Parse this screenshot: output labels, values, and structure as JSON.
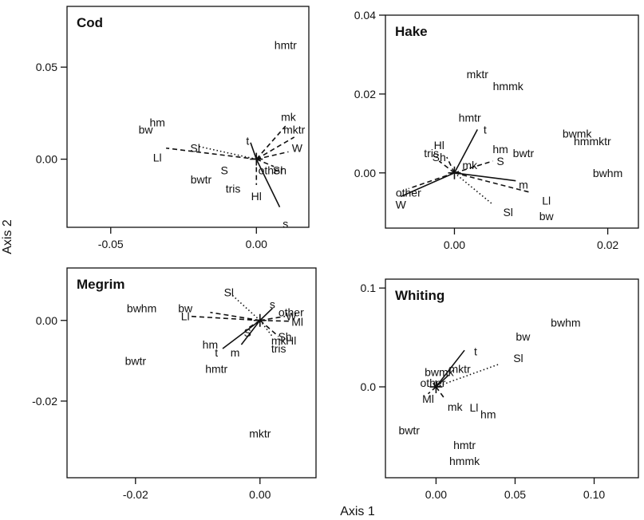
{
  "axis_labels": {
    "x": "Axis 1",
    "y": "Axis 2"
  },
  "chart_data": [
    {
      "type": "scatter",
      "title": "Cod",
      "xlim": [
        -0.065,
        0.018
      ],
      "ylim": [
        -0.037,
        0.083
      ],
      "xticks": [
        {
          "v": -0.05,
          "label": "-0.05"
        },
        {
          "v": 0.0,
          "label": "0.00"
        }
      ],
      "yticks": [
        {
          "v": 0.05,
          "label": "0.05"
        },
        {
          "v": 0.0,
          "label": "0.00"
        }
      ],
      "points": [
        {
          "label": "hmtr",
          "x": 0.01,
          "y": 0.062
        },
        {
          "label": "hm",
          "x": -0.034,
          "y": 0.02
        },
        {
          "label": "bw",
          "x": -0.038,
          "y": 0.016
        },
        {
          "label": "mk",
          "x": 0.011,
          "y": 0.023
        },
        {
          "label": "mktr",
          "x": 0.013,
          "y": 0.016
        },
        {
          "label": "Sl",
          "x": -0.021,
          "y": 0.006
        },
        {
          "label": "Ll",
          "x": -0.034,
          "y": 0.001
        },
        {
          "label": "W",
          "x": 0.014,
          "y": 0.006
        },
        {
          "label": "t",
          "x": -0.003,
          "y": 0.01
        },
        {
          "label": "S",
          "x": -0.011,
          "y": -0.006
        },
        {
          "label": "bwtr",
          "x": -0.019,
          "y": -0.011
        },
        {
          "label": "other",
          "x": 0.005,
          "y": -0.006
        },
        {
          "label": "Sh",
          "x": 0.008,
          "y": -0.006
        },
        {
          "label": "tris",
          "x": -0.008,
          "y": -0.016
        },
        {
          "label": "Hl",
          "x": 0.0,
          "y": -0.02
        },
        {
          "label": "s",
          "x": 0.01,
          "y": -0.035
        }
      ],
      "vectors": [
        {
          "to": "t",
          "style": "solid",
          "x": -0.002,
          "y": 0.009
        },
        {
          "to": "s",
          "style": "solid",
          "x": 0.008,
          "y": -0.026
        },
        {
          "to": "Ll",
          "style": "dashed",
          "x": -0.031,
          "y": 0.006
        },
        {
          "to": "Sl",
          "style": "dotted",
          "x": -0.02,
          "y": 0.007
        },
        {
          "to": "mk",
          "style": "dashed",
          "x": 0.01,
          "y": 0.018
        },
        {
          "to": "mktr",
          "style": "dashed",
          "x": 0.013,
          "y": 0.012
        },
        {
          "to": "W",
          "style": "dashed",
          "x": 0.011,
          "y": 0.004
        },
        {
          "to": "Hl",
          "style": "dashed",
          "x": 0.0,
          "y": -0.014
        },
        {
          "to": "other",
          "style": "dashed",
          "x": 0.006,
          "y": -0.004
        }
      ]
    },
    {
      "type": "scatter",
      "title": "Hake",
      "xlim": [
        -0.009,
        0.024
      ],
      "ylim": [
        -0.014,
        0.04
      ],
      "xticks": [
        {
          "v": 0.0,
          "label": "0.00"
        },
        {
          "v": 0.02,
          "label": "0.02"
        }
      ],
      "yticks": [
        {
          "v": 0.04,
          "label": "0.04"
        },
        {
          "v": 0.02,
          "label": "0.02"
        },
        {
          "v": 0.0,
          "label": "0.00"
        }
      ],
      "points": [
        {
          "label": "mktr",
          "x": 0.003,
          "y": 0.025
        },
        {
          "label": "hmmk",
          "x": 0.007,
          "y": 0.022
        },
        {
          "label": "hmtr",
          "x": 0.002,
          "y": 0.014
        },
        {
          "label": "t",
          "x": 0.004,
          "y": 0.011
        },
        {
          "label": "bwmk",
          "x": 0.016,
          "y": 0.01
        },
        {
          "label": "hmmktr",
          "x": 0.018,
          "y": 0.008
        },
        {
          "label": "Hl",
          "x": -0.002,
          "y": 0.007
        },
        {
          "label": "hm",
          "x": 0.006,
          "y": 0.006
        },
        {
          "label": "bwtr",
          "x": 0.009,
          "y": 0.005
        },
        {
          "label": "tris",
          "x": -0.003,
          "y": 0.005
        },
        {
          "label": "Sh",
          "x": -0.002,
          "y": 0.004
        },
        {
          "label": "S",
          "x": 0.006,
          "y": 0.003
        },
        {
          "label": "mk",
          "x": 0.002,
          "y": 0.002
        },
        {
          "label": "bwhm",
          "x": 0.02,
          "y": 0.0
        },
        {
          "label": "m",
          "x": 0.009,
          "y": -0.003
        },
        {
          "label": "other",
          "x": -0.006,
          "y": -0.005
        },
        {
          "label": "W",
          "x": -0.007,
          "y": -0.008
        },
        {
          "label": "Ll",
          "x": 0.012,
          "y": -0.007
        },
        {
          "label": "Sl",
          "x": 0.007,
          "y": -0.01
        },
        {
          "label": "bw",
          "x": 0.012,
          "y": -0.011
        }
      ],
      "vectors": [
        {
          "to": "hmtr",
          "style": "solid",
          "x": 0.003,
          "y": 0.011
        },
        {
          "to": "m",
          "style": "solid",
          "x": 0.008,
          "y": -0.002
        },
        {
          "to": "S",
          "style": "dashed",
          "x": 0.005,
          "y": 0.003
        },
        {
          "to": "Ll",
          "style": "dashed",
          "x": 0.01,
          "y": -0.005
        },
        {
          "to": "Sl",
          "style": "dotted",
          "x": 0.005,
          "y": -0.008
        },
        {
          "to": "W",
          "style": "solid",
          "x": -0.007,
          "y": -0.006
        },
        {
          "to": "other",
          "style": "dashed",
          "x": -0.006,
          "y": -0.004
        },
        {
          "to": "Sh",
          "style": "dashed",
          "x": -0.002,
          "y": 0.003
        },
        {
          "to": "Hl",
          "style": "dashed",
          "x": -0.001,
          "y": 0.004
        }
      ]
    },
    {
      "type": "scatter",
      "title": "Megrim",
      "xlim": [
        -0.031,
        0.009
      ],
      "ylim": [
        -0.039,
        0.013
      ],
      "xticks": [
        {
          "v": -0.02,
          "label": "-0.02"
        },
        {
          "v": 0.0,
          "label": "0.00"
        }
      ],
      "yticks": [
        {
          "v": 0.0,
          "label": "0.00"
        },
        {
          "v": -0.02,
          "label": "-0.02"
        }
      ],
      "points": [
        {
          "label": "Sl",
          "x": -0.005,
          "y": 0.007
        },
        {
          "label": "bwhm",
          "x": -0.019,
          "y": 0.003
        },
        {
          "label": "bw",
          "x": -0.012,
          "y": 0.003
        },
        {
          "label": "s",
          "x": 0.002,
          "y": 0.004
        },
        {
          "label": "Ll",
          "x": -0.012,
          "y": 0.001
        },
        {
          "label": "other",
          "x": 0.005,
          "y": 0.002
        },
        {
          "label": "W",
          "x": 0.005,
          "y": 0.001
        },
        {
          "label": "Ml",
          "x": 0.006,
          "y": -0.0003
        },
        {
          "label": "Sh",
          "x": 0.004,
          "y": -0.004
        },
        {
          "label": "Hl",
          "x": 0.005,
          "y": -0.005
        },
        {
          "label": "S",
          "x": -0.002,
          "y": -0.003
        },
        {
          "label": "hm",
          "x": -0.008,
          "y": -0.006
        },
        {
          "label": "t",
          "x": -0.007,
          "y": -0.008
        },
        {
          "label": "m",
          "x": -0.004,
          "y": -0.008
        },
        {
          "label": "bwtr",
          "x": -0.02,
          "y": -0.01
        },
        {
          "label": "mk",
          "x": 0.003,
          "y": -0.005
        },
        {
          "label": "hmtr",
          "x": -0.007,
          "y": -0.012
        },
        {
          "label": "tris",
          "x": 0.003,
          "y": -0.007
        },
        {
          "label": "mktr",
          "x": 0.0,
          "y": -0.028
        }
      ],
      "vectors": [
        {
          "to": "Sl",
          "style": "dotted",
          "x": -0.005,
          "y": 0.007
        },
        {
          "to": "Ll",
          "style": "dashed",
          "x": -0.011,
          "y": 0.001
        },
        {
          "to": "bw",
          "style": "dashed",
          "x": -0.008,
          "y": 0.002
        },
        {
          "to": "s",
          "style": "solid",
          "x": 0.002,
          "y": 0.003
        },
        {
          "to": "other",
          "style": "dashed",
          "x": 0.004,
          "y": 0.001
        },
        {
          "to": "Ml",
          "style": "dashed",
          "x": 0.005,
          "y": -0.0002
        },
        {
          "to": "t",
          "style": "solid",
          "x": -0.006,
          "y": -0.007
        },
        {
          "to": "S",
          "style": "dashed",
          "x": -0.002,
          "y": -0.002
        },
        {
          "to": "m",
          "style": "solid",
          "x": -0.003,
          "y": -0.006
        },
        {
          "to": "Hl",
          "style": "dashed",
          "x": 0.003,
          "y": -0.004
        },
        {
          "to": "mk",
          "style": "dotted",
          "x": 0.002,
          "y": -0.004
        }
      ]
    },
    {
      "type": "scatter",
      "title": "Whiting",
      "xlim": [
        -0.032,
        0.128
      ],
      "ylim": [
        -0.092,
        0.109
      ],
      "xticks": [
        {
          "v": 0.0,
          "label": "0.00"
        },
        {
          "v": 0.05,
          "label": "0.05"
        },
        {
          "v": 0.1,
          "label": "0.10"
        }
      ],
      "yticks": [
        {
          "v": 0.1,
          "label": "0.1"
        },
        {
          "v": 0.0,
          "label": "0.0"
        }
      ],
      "points": [
        {
          "label": "bwhm",
          "x": 0.082,
          "y": 0.065
        },
        {
          "label": "bw",
          "x": 0.055,
          "y": 0.051
        },
        {
          "label": "Sl",
          "x": 0.052,
          "y": 0.029
        },
        {
          "label": "t",
          "x": 0.025,
          "y": 0.036
        },
        {
          "label": "bwmk",
          "x": 0.002,
          "y": 0.015
        },
        {
          "label": "mktr",
          "x": 0.015,
          "y": 0.018
        },
        {
          "label": "other",
          "x": -0.002,
          "y": 0.004
        },
        {
          "label": "Ml",
          "x": -0.005,
          "y": -0.012
        },
        {
          "label": "mk",
          "x": 0.012,
          "y": -0.02
        },
        {
          "label": "Ll",
          "x": 0.024,
          "y": -0.021
        },
        {
          "label": "hm",
          "x": 0.033,
          "y": -0.028
        },
        {
          "label": "bwtr",
          "x": -0.017,
          "y": -0.044
        },
        {
          "label": "hmtr",
          "x": 0.018,
          "y": -0.059
        },
        {
          "label": "hmmk",
          "x": 0.018,
          "y": -0.075
        }
      ],
      "vectors": [
        {
          "to": "t",
          "style": "solid",
          "x": 0.018,
          "y": 0.037
        },
        {
          "to": "Sl",
          "style": "dotted",
          "x": 0.04,
          "y": 0.023
        },
        {
          "to": "mktr",
          "style": "solid",
          "x": 0.008,
          "y": 0.012
        },
        {
          "to": "bwmk",
          "style": "dashed",
          "x": -0.002,
          "y": 0.004
        },
        {
          "to": "Ml",
          "style": "dashed",
          "x": -0.005,
          "y": -0.007
        },
        {
          "to": "mk",
          "style": "dashed",
          "x": 0.005,
          "y": -0.011
        }
      ]
    }
  ]
}
